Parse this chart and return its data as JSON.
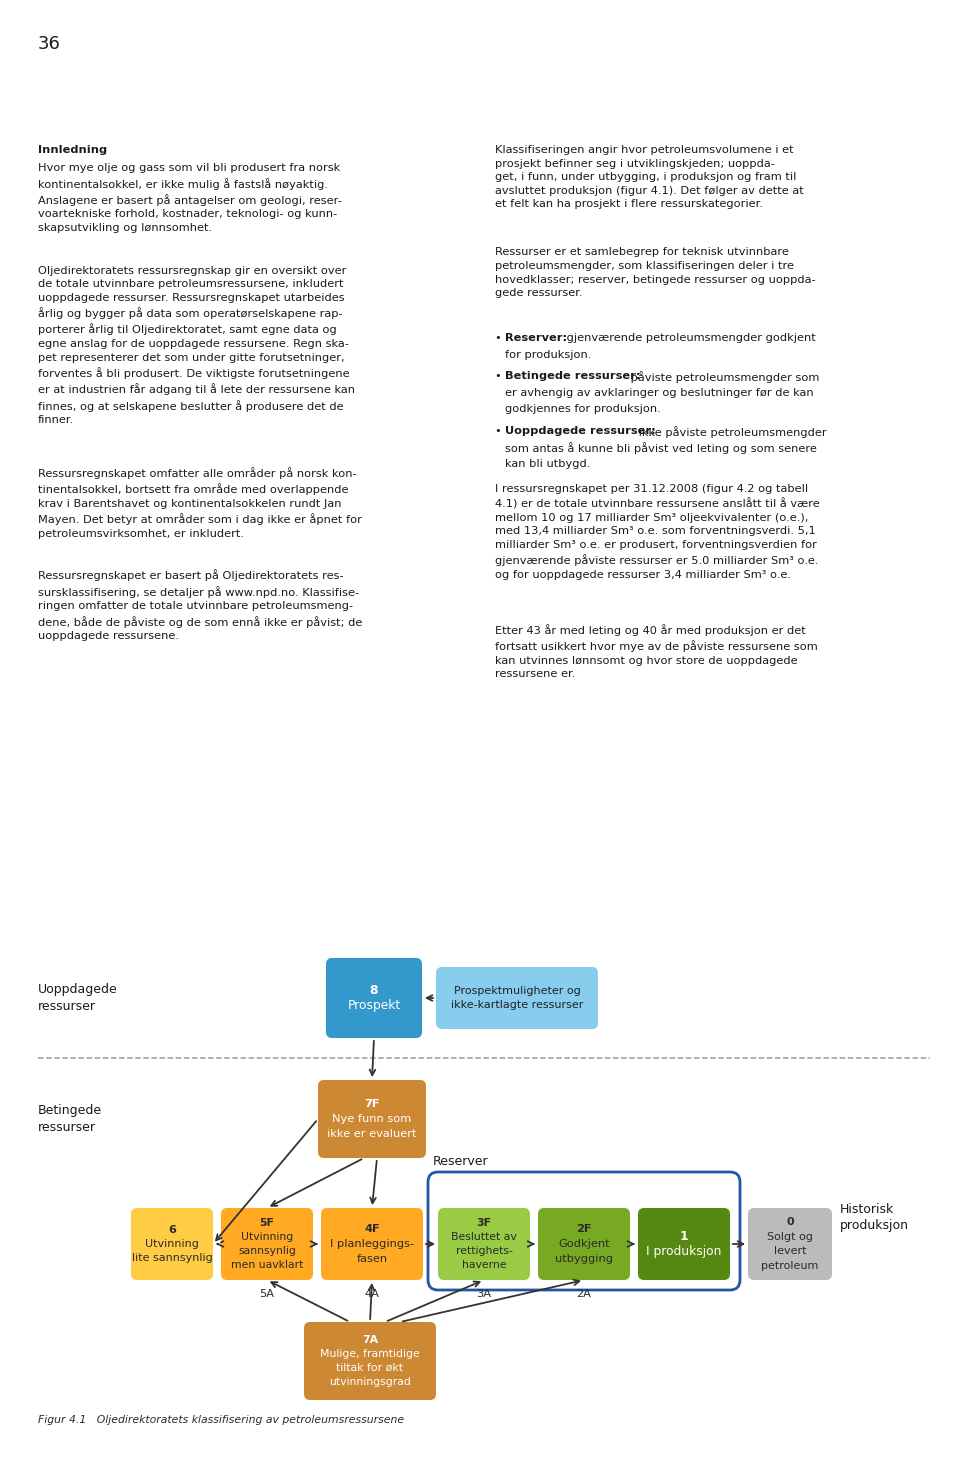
{
  "page_number": "36",
  "bg_color": "#ffffff",
  "text_color": "#1a1a1a",
  "figsize": [
    9.6,
    14.65
  ],
  "dpi": 100,
  "diagram": {
    "label_uoppdagede": "Uoppdagede\nressurser",
    "label_betingede": "Betingede\nressurser",
    "label_reserver": "Reserver",
    "label_historisk": "Historisk\nproduksjon",
    "figur_caption": "Figur 4.1   Oljedirektoratets klassifisering av petroleumsressursene",
    "box_8_color": "#3399cc",
    "box_prospect_color": "#88ccee",
    "box_7F_color": "#cc8833",
    "box_7A_color": "#cc8833",
    "box_6_color": "#ffcc44",
    "box_5F_color": "#ffaa22",
    "box_4F_color": "#ffaa22",
    "box_3F_color": "#99cc44",
    "box_2F_color": "#77aa22",
    "box_1_color": "#558811",
    "box_0_color": "#bbbbbb",
    "reserver_border_color": "#2255aa",
    "dashed_line_color": "#999999"
  }
}
